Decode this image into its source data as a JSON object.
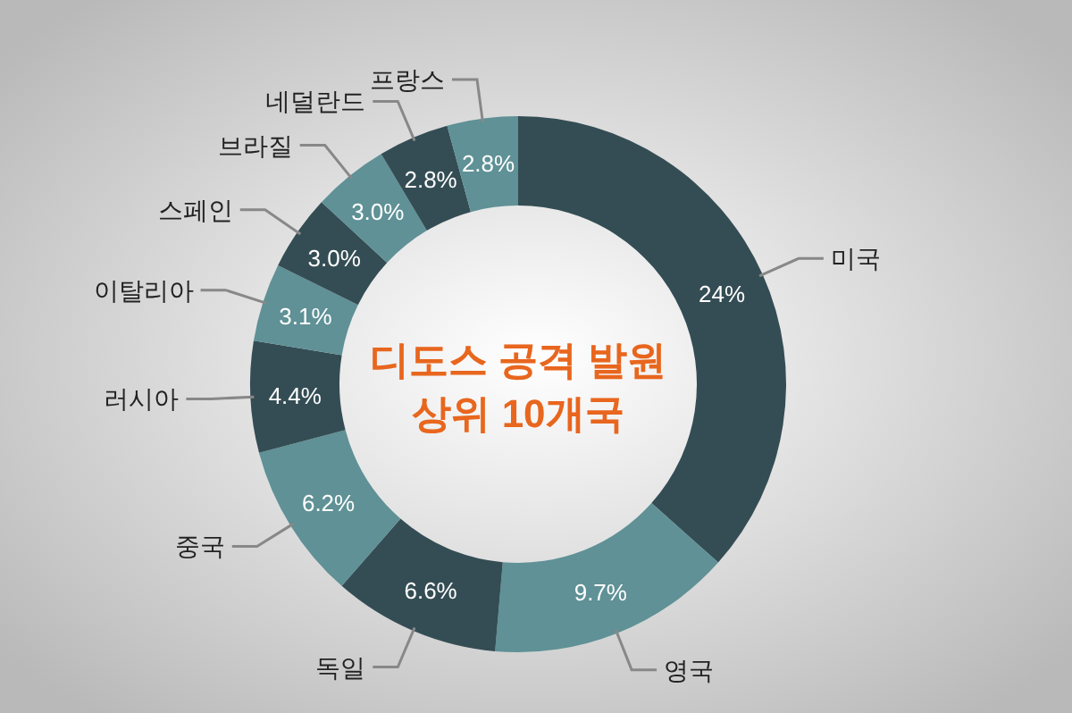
{
  "chart_data": {
    "type": "donut",
    "title": "디도스 공격 발원\n상위 10개국",
    "categories": [
      "미국",
      "영국",
      "독일",
      "중국",
      "러시아",
      "이탈리아",
      "스페인",
      "브라질",
      "네덜란드",
      "프랑스"
    ],
    "values": [
      24,
      9.7,
      6.6,
      6.2,
      4.4,
      3.1,
      3.0,
      3.0,
      2.8,
      2.8
    ],
    "value_labels": [
      "24%",
      "9.7%",
      "6.6%",
      "6.2%",
      "4.4%",
      "3.1%",
      "3.0%",
      "3.0%",
      "2.8%",
      "2.8%"
    ],
    "colors": [
      "#344d54",
      "#5f9196",
      "#344d54",
      "#5f9196",
      "#344d54",
      "#5f9196",
      "#344d54",
      "#5f9196",
      "#344d54",
      "#5f9196"
    ]
  }
}
